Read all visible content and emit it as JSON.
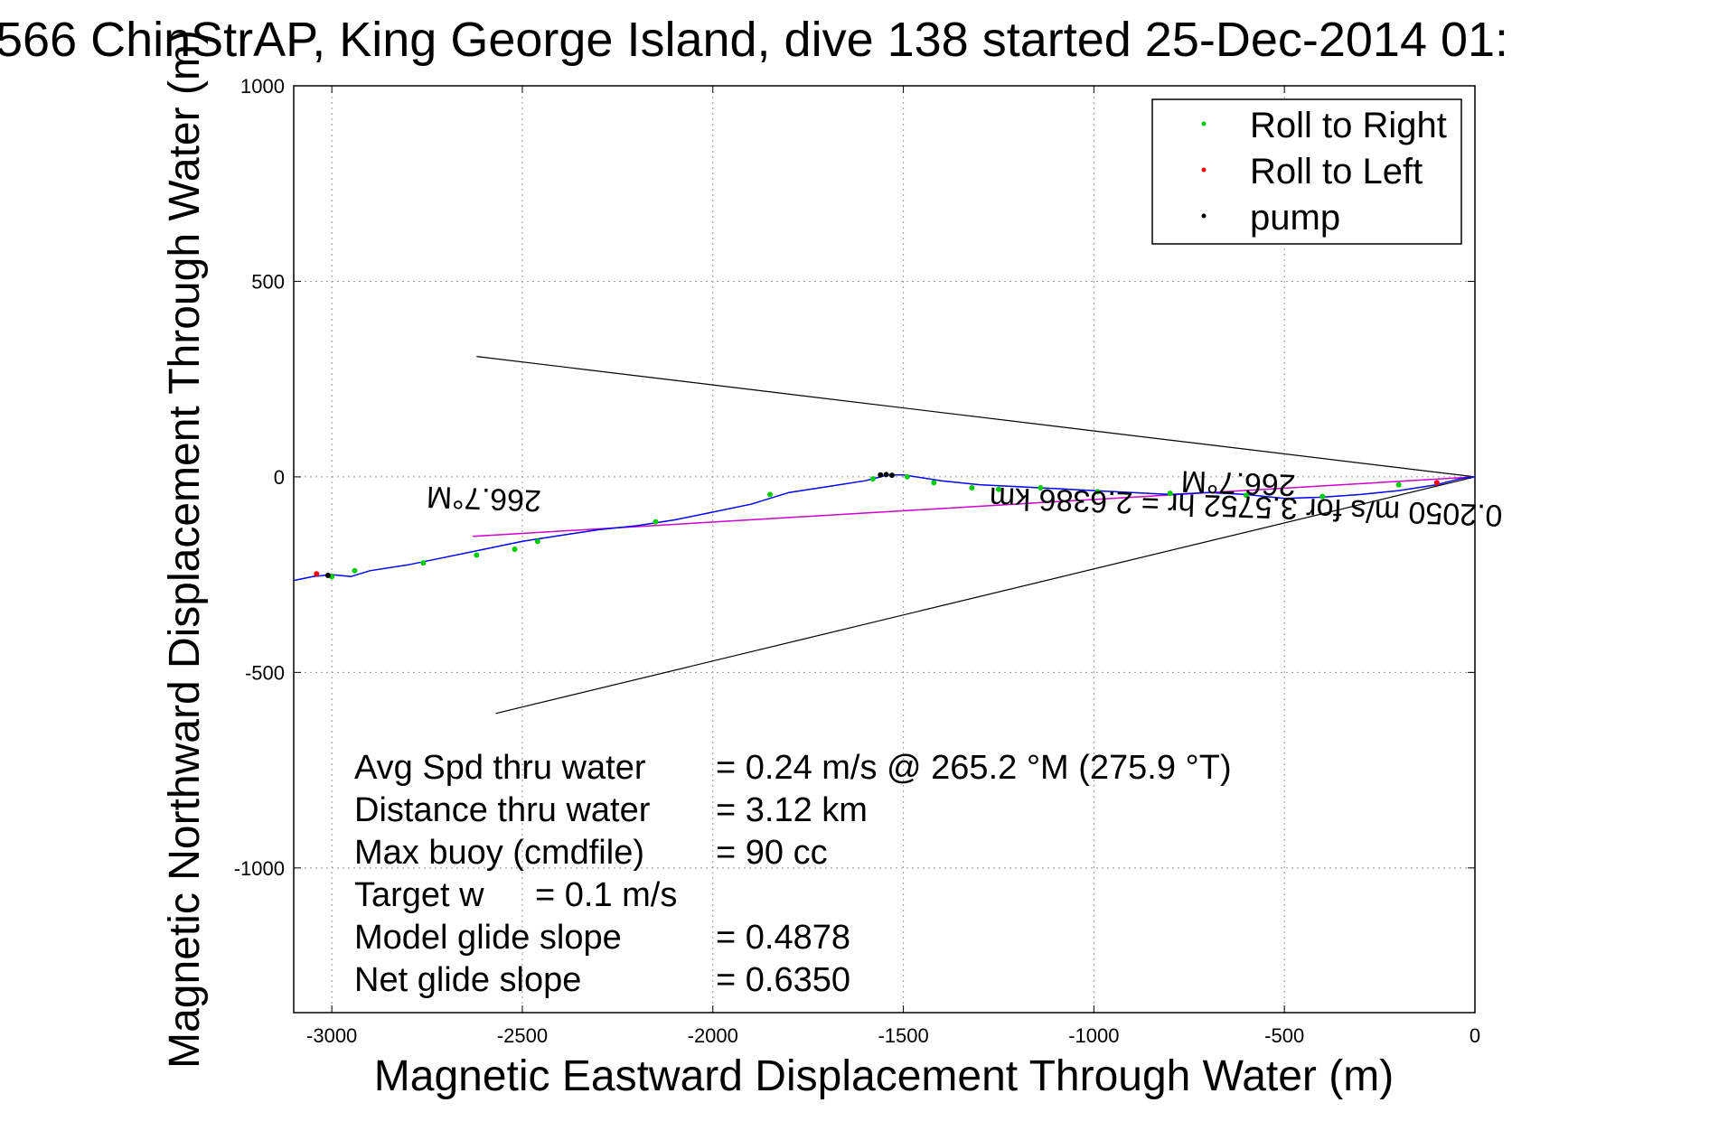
{
  "chart_data": {
    "type": "line",
    "title": "566 ChinStrAP, King George Island, dive 138 started 25-Dec-2014 01:",
    "xlabel": "Magnetic Eastward Displacement Through Water (m)",
    "ylabel": "Magnetic Northward Displacement Through Water (m)",
    "xlim": [
      -3100,
      0
    ],
    "ylim": [
      -1370,
      1000
    ],
    "x_ticks": [
      -3000,
      -2500,
      -2000,
      -1500,
      -1000,
      -500,
      0
    ],
    "y_ticks": [
      1000,
      500,
      0,
      -500,
      -1000
    ],
    "x_tick_labels": [
      "-3000",
      "-2500",
      "-2000",
      "-1500",
      "-1000",
      "-500",
      "0"
    ],
    "y_tick_labels": [
      "1000",
      "500",
      "0",
      "-500",
      "-1000"
    ],
    "grid": true,
    "legend_position": "top-right",
    "legend": [
      {
        "label": "Roll to Right",
        "color": "#00cc00"
      },
      {
        "label": "Roll to Left",
        "color": "#ff0000"
      },
      {
        "label": "pump",
        "color": "#000000"
      }
    ],
    "track": {
      "color": "#0000ff",
      "x": [
        0,
        -20,
        -40,
        -60,
        -100,
        -200,
        -300,
        -400,
        -500,
        -600,
        -700,
        -800,
        -900,
        -1000,
        -1100,
        -1200,
        -1300,
        -1400,
        -1500,
        -1540,
        -1560,
        -1600,
        -1700,
        -1800,
        -1900,
        -2000,
        -2100,
        -2200,
        -2300,
        -2400,
        -2500,
        -2600,
        -2700,
        -2800,
        -2900,
        -2950,
        -3000,
        -3050,
        -3100
      ],
      "y": [
        0,
        -2,
        -5,
        -10,
        -20,
        -35,
        -45,
        -52,
        -55,
        -45,
        -40,
        -45,
        -40,
        -35,
        -30,
        -25,
        -20,
        -10,
        5,
        5,
        0,
        -10,
        -25,
        -40,
        -70,
        -90,
        -110,
        -125,
        -135,
        -150,
        -165,
        -185,
        -205,
        -225,
        -240,
        -255,
        -250,
        -255,
        -265
      ]
    },
    "roll_right_points": {
      "color": "#00cc00",
      "x": [
        -3000,
        -2940,
        -2760,
        -2620,
        -2520,
        -2460,
        -2150,
        -1850,
        -1580,
        -1490,
        -1420,
        -1320,
        -1250,
        -1140,
        -990,
        -800,
        -600,
        -400,
        -200
      ],
      "y": [
        -255,
        -240,
        -220,
        -200,
        -185,
        -165,
        -115,
        -45,
        -5,
        0,
        -15,
        -28,
        -32,
        -28,
        -38,
        -42,
        -47,
        -50,
        -20
      ]
    },
    "roll_left_points": {
      "color": "#ff0000",
      "x": [
        -3040,
        -100
      ],
      "y": [
        -248,
        -15
      ]
    },
    "pump_points": {
      "color": "#000000",
      "x": [
        -1560,
        -1545,
        -1530,
        -3010
      ],
      "y": [
        5,
        6,
        4,
        -252
      ]
    },
    "envelope_lines": [
      {
        "color": "#000000",
        "x": [
          0,
          -2620
        ],
        "y": [
          0,
          308
        ]
      },
      {
        "color": "#000000",
        "x": [
          0,
          -2570
        ],
        "y": [
          0,
          -605
        ]
      }
    ],
    "heading_line": {
      "color": "#cc00cc",
      "x": [
        0,
        -2630
      ],
      "y": [
        0,
        -152
      ]
    },
    "annotations": [
      {
        "text": "266.7°M",
        "x": -2600,
        "y": -30
      },
      {
        "text": "266.7°M",
        "x": -620,
        "y": 10
      },
      {
        "text": "0.2050 m/s for 3.5752 hr = 2.6386 km",
        "x": -600,
        "y": -50
      }
    ],
    "info_lines": [
      {
        "label": "Avg Spd thru water",
        "value": "=  0.24 m/s @ 265.2 °M (275.9 °T)"
      },
      {
        "label": "Distance thru water",
        "value": "=  3.12 km"
      },
      {
        "label": "Max buoy (cmdfile)",
        "value": "= 90 cc"
      },
      {
        "label": "Target w",
        "value": "= 0.1 m/s"
      },
      {
        "label": "Model glide slope",
        "value": "= 0.4878"
      },
      {
        "label": "Net glide slope",
        "value": "= 0.6350"
      }
    ]
  }
}
